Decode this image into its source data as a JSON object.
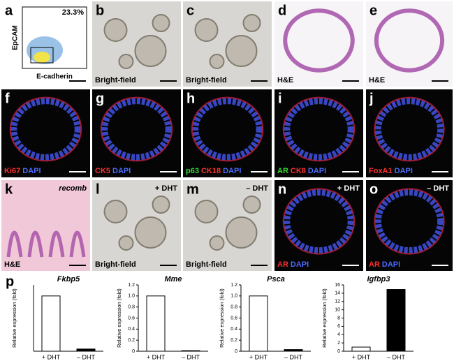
{
  "panels": [
    {
      "letter": "a",
      "annotation": "23.3%",
      "y_label": "EpCAM",
      "x_label": "E-cadherin"
    },
    {
      "letter": "b",
      "caption": "Bright-field"
    },
    {
      "letter": "c",
      "caption": "Bright-field"
    },
    {
      "letter": "d",
      "caption": "H&E"
    },
    {
      "letter": "e",
      "caption": "H&E"
    },
    {
      "letter": "f",
      "stains": [
        "Ki67",
        "DAPI"
      ]
    },
    {
      "letter": "g",
      "stains": [
        "CK5",
        "DAPI"
      ]
    },
    {
      "letter": "h",
      "stains": [
        "p63",
        "CK18",
        "DAPI"
      ]
    },
    {
      "letter": "i",
      "stains": [
        "AR",
        "CK8",
        "DAPI"
      ]
    },
    {
      "letter": "j",
      "stains": [
        "FoxA1",
        "DAPI"
      ]
    },
    {
      "letter": "k",
      "annotation": "recomb",
      "caption": "H&E"
    },
    {
      "letter": "l",
      "annotation": "+ DHT",
      "caption": "Bright-field"
    },
    {
      "letter": "m",
      "annotation": "– DHT",
      "caption": "Bright-field"
    },
    {
      "letter": "n",
      "annotation": "+ DHT",
      "stains": [
        "AR",
        "DAPI"
      ]
    },
    {
      "letter": "o",
      "annotation": "– DHT",
      "stains": [
        "AR",
        "DAPI"
      ]
    }
  ],
  "panel_p": {
    "letter": "p",
    "charts": [
      {
        "type": "bar",
        "title": "Fkbp5",
        "y_label": "Relative expression (fold)",
        "categories": [
          "+ DHT",
          "– DHT"
        ],
        "values": [
          1.0,
          0.04
        ],
        "colors": [
          "#ffffff",
          "#000000"
        ],
        "ylim": [
          0,
          1.2
        ]
      },
      {
        "type": "bar",
        "title": "Mme",
        "y_label": "Relative expression (fold)",
        "categories": [
          "+ DHT",
          "– DHT"
        ],
        "values": [
          1.0,
          0.01
        ],
        "colors": [
          "#ffffff",
          "#000000"
        ],
        "ylim": [
          0,
          1.2
        ],
        "yticks": [
          0,
          0.2,
          0.4,
          0.6,
          0.8,
          {
            "value": 1,
            "label": "1.0"
          },
          1.2
        ]
      },
      {
        "type": "bar",
        "title": "Psca",
        "y_label": "Relative expression (fold)",
        "categories": [
          "+ DHT",
          "– DHT"
        ],
        "values": [
          1.0,
          0.03
        ],
        "colors": [
          "#ffffff",
          "#000000"
        ],
        "ylim": [
          0,
          1.2
        ],
        "yticks": [
          0,
          0.2,
          0.4,
          0.6,
          0.8,
          {
            "value": 1,
            "label": "1.0"
          },
          1.2
        ]
      },
      {
        "type": "bar",
        "title": "Igfbp3",
        "y_label": "Relative expression (fold)",
        "categories": [
          "+ DHT",
          "– DHT"
        ],
        "values": [
          1.0,
          14.9
        ],
        "colors": [
          "#ffffff",
          "#000000"
        ],
        "ylim": [
          0,
          16
        ],
        "yticks": [
          0,
          2,
          4,
          6,
          8,
          10,
          12,
          14,
          16
        ]
      }
    ]
  }
}
